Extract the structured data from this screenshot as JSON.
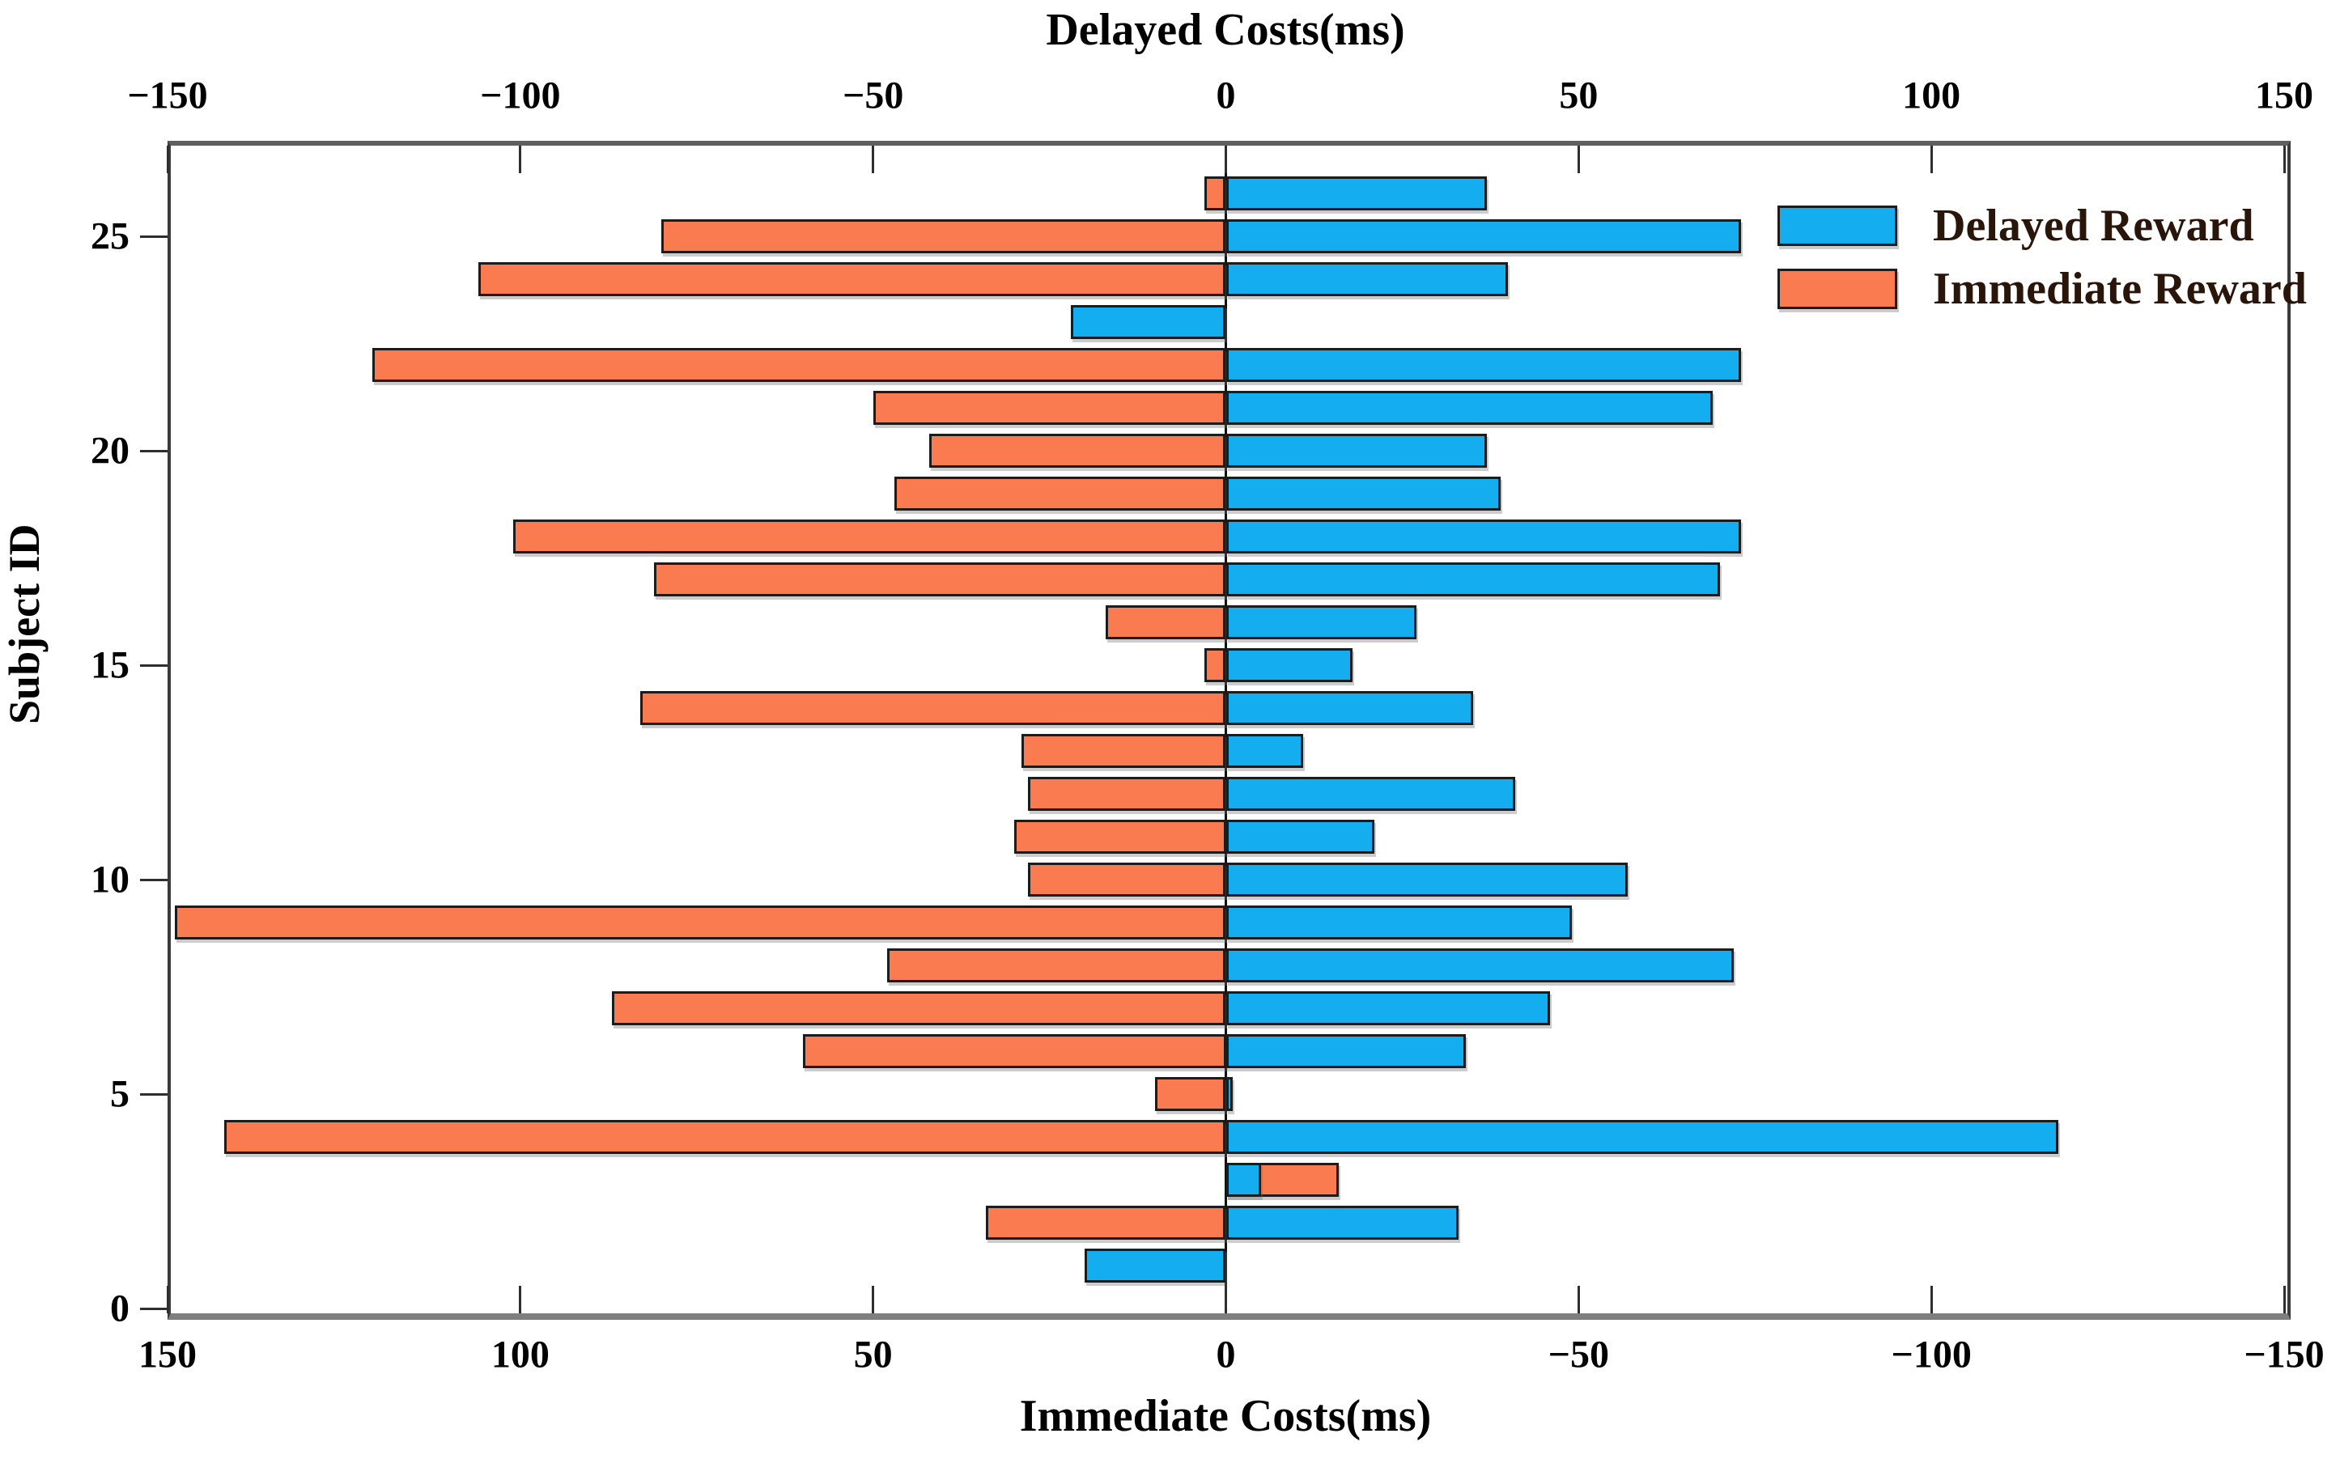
{
  "figure": {
    "top_axis_title": "Delayed Costs(ms)",
    "bottom_axis_title": "Immediate Costs(ms)",
    "y_axis_title": "Subject ID"
  },
  "chart_data": {
    "type": "bar",
    "orientation": "horizontal-diverging",
    "note": "Blue bars read on top axis (positive rightward). Orange bars read on reversed bottom axis (positive leftward).",
    "x_axis_top": {
      "label": "Delayed Costs(ms)",
      "tick_values": [
        -150,
        -100,
        -50,
        0,
        50,
        100,
        150
      ],
      "tick_labels": [
        "−150",
        "−100",
        "−50",
        "0",
        "50",
        "100",
        "150"
      ],
      "range": [
        -150,
        150
      ]
    },
    "x_axis_bottom": {
      "label": "Immediate Costs(ms)",
      "reversed": true,
      "tick_values": [
        150,
        100,
        50,
        0,
        -50,
        -100,
        -150
      ],
      "tick_labels": [
        "150",
        "100",
        "50",
        "0",
        "−50",
        "−100",
        "−150"
      ],
      "range": [
        150,
        -150
      ]
    },
    "y_axis": {
      "label": "Subject ID",
      "tick_values": [
        0,
        5,
        10,
        15,
        20,
        25
      ],
      "tick_labels": [
        "0",
        "5",
        "10",
        "15",
        "20",
        "25"
      ],
      "range": [
        0,
        27.2
      ]
    },
    "legend": [
      {
        "label": "Delayed Reward",
        "color": "#14AEF0"
      },
      {
        "label": "Immediate Reward",
        "color": "#FB7B50"
      }
    ],
    "subjects": [
      1,
      2,
      3,
      4,
      5,
      6,
      7,
      8,
      9,
      10,
      11,
      12,
      13,
      14,
      15,
      16,
      17,
      18,
      19,
      20,
      21,
      22,
      23,
      24,
      25,
      26
    ],
    "series": [
      {
        "name": "Delayed Reward",
        "axis": "top",
        "color": "#14AEF0",
        "values": [
          -20,
          33,
          5,
          118,
          1,
          34,
          46,
          72,
          49,
          57,
          21,
          41,
          11,
          35,
          18,
          27,
          70,
          73,
          39,
          37,
          69,
          73,
          -22,
          40,
          73,
          37
        ]
      },
      {
        "name": "Immediate Reward",
        "axis": "bottom",
        "color": "#FB7B50",
        "values": [
          0,
          34,
          -16,
          142,
          10,
          60,
          87,
          48,
          149,
          28,
          30,
          28,
          29,
          83,
          3,
          17,
          81,
          101,
          47,
          42,
          50,
          121,
          0,
          106,
          80,
          3
        ]
      }
    ],
    "grid": false,
    "legend_position": "upper right inside plot"
  },
  "styles": {
    "bar_edge_color": "#1c1c1c",
    "axis_text_color": "#000000",
    "legend_text_color": "#2a150a",
    "background": "#ffffff"
  }
}
